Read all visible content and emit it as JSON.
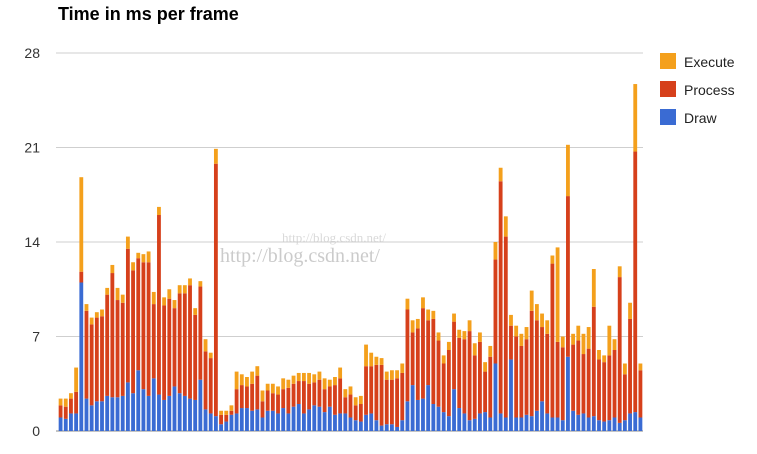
{
  "title": "Time in ms per frame",
  "watermark": "http://blog.csdn.net/",
  "colors": {
    "execute": "#f4a01c",
    "process": "#d6401b",
    "draw": "#3a6bd3"
  },
  "chart_data": {
    "type": "bar",
    "stacked": true,
    "title": "Time in ms per frame",
    "xlabel": "",
    "ylabel": "",
    "ylim": [
      0,
      28
    ],
    "yticks": [
      0,
      7,
      14,
      21,
      28
    ],
    "grid": true,
    "legend_position": "right",
    "legend": [
      "Execute",
      "Process",
      "Draw"
    ],
    "series": [
      {
        "name": "Draw",
        "values": [
          1.0,
          0.9,
          1.3,
          1.3,
          11.0,
          2.4,
          1.9,
          2.2,
          2.2,
          2.6,
          2.5,
          2.5,
          2.6,
          3.6,
          2.8,
          4.5,
          3.1,
          2.6,
          3.9,
          2.7,
          2.3,
          2.6,
          3.3,
          2.8,
          2.6,
          2.4,
          2.3,
          3.8,
          1.6,
          1.3,
          1.1,
          0.5,
          0.7,
          1.2,
          1.3,
          1.7,
          1.7,
          1.5,
          1.6,
          1.0,
          1.5,
          1.5,
          1.3,
          1.7,
          1.3,
          1.8,
          2.0,
          1.3,
          1.6,
          1.9,
          1.8,
          1.4,
          1.8,
          1.2,
          1.3,
          1.3,
          1.0,
          0.8,
          0.7,
          1.2,
          1.3,
          0.8,
          0.4,
          0.5,
          0.5,
          0.3,
          0.8,
          2.2,
          3.4,
          2.3,
          2.4,
          3.4,
          2.0,
          1.8,
          1.4,
          1.1,
          3.1,
          1.7,
          1.3,
          0.8,
          0.9,
          1.3,
          1.4,
          1.0,
          5.0,
          1.3,
          1.0,
          5.3,
          1.0,
          1.0,
          1.2,
          1.1,
          1.5,
          2.2,
          1.3,
          1.0,
          1.0,
          0.8,
          5.5,
          1.5,
          1.2,
          1.3,
          1.0,
          1.1,
          0.8,
          0.7,
          0.8,
          1.0,
          0.6,
          0.8,
          1.3,
          1.4,
          1.0
        ],
        "color": "#3a6bd3"
      },
      {
        "name": "Process",
        "values": [
          0.9,
          0.9,
          1.1,
          1.6,
          0.8,
          6.5,
          6.0,
          6.2,
          6.3,
          7.5,
          9.2,
          7.2,
          6.9,
          9.9,
          9.1,
          8.3,
          9.4,
          9.9,
          5.5,
          13.3,
          7.0,
          7.2,
          5.8,
          7.4,
          7.6,
          8.4,
          6.3,
          6.9,
          4.3,
          4.1,
          18.7,
          0.7,
          0.5,
          0.3,
          1.8,
          1.7,
          1.6,
          2.0,
          2.5,
          1.2,
          1.5,
          1.3,
          1.4,
          1.4,
          1.9,
          1.7,
          1.7,
          2.4,
          1.9,
          1.7,
          2.0,
          1.7,
          1.5,
          2.2,
          2.6,
          1.2,
          1.7,
          1.1,
          1.3,
          3.6,
          3.5,
          4.1,
          4.5,
          3.3,
          3.3,
          3.6,
          3.5,
          6.8,
          3.9,
          5.3,
          6.7,
          4.8,
          6.3,
          4.9,
          3.6,
          4.9,
          5.0,
          5.2,
          5.5,
          6.6,
          4.7,
          5.3,
          3.0,
          4.5,
          7.7,
          17.2,
          13.4,
          2.5,
          6.0,
          5.3,
          5.6,
          7.8,
          6.7,
          5.5,
          5.9,
          11.4,
          5.6,
          5.4,
          11.9,
          4.9,
          5.5,
          4.4,
          5.1,
          8.1,
          4.5,
          4.4,
          4.8,
          5.0,
          10.8,
          3.4,
          7.0,
          19.3,
          3.5
        ],
        "color": "#d6401b"
      },
      {
        "name": "Execute",
        "values": [
          0.5,
          0.6,
          0.4,
          1.8,
          7.0,
          0.5,
          0.5,
          0.4,
          0.5,
          0.5,
          0.6,
          0.9,
          0.6,
          0.9,
          0.6,
          0.4,
          0.6,
          0.8,
          0.9,
          0.6,
          0.6,
          0.7,
          0.6,
          0.6,
          0.6,
          0.5,
          0.5,
          0.4,
          0.9,
          0.4,
          1.1,
          0.3,
          0.3,
          0.4,
          1.3,
          0.8,
          0.7,
          0.9,
          0.7,
          0.8,
          0.5,
          0.7,
          0.6,
          0.8,
          0.6,
          0.6,
          0.6,
          0.6,
          0.8,
          0.6,
          0.6,
          0.8,
          0.5,
          0.6,
          0.8,
          0.6,
          0.6,
          0.6,
          0.6,
          1.6,
          1.0,
          0.6,
          0.5,
          0.6,
          0.7,
          0.6,
          0.7,
          0.8,
          0.9,
          0.7,
          0.8,
          0.8,
          0.6,
          0.6,
          0.6,
          0.6,
          0.6,
          0.6,
          0.6,
          0.8,
          0.9,
          0.7,
          0.7,
          0.8,
          1.3,
          1.0,
          1.5,
          0.8,
          0.8,
          0.9,
          0.9,
          1.5,
          1.2,
          1.0,
          1.0,
          0.6,
          7.0,
          0.8,
          3.8,
          0.8,
          1.1,
          1.5,
          1.6,
          2.8,
          0.7,
          0.5,
          2.2,
          0.8,
          0.8,
          0.8,
          1.2,
          5.0,
          0.5
        ],
        "color": "#f4a01c"
      }
    ]
  }
}
